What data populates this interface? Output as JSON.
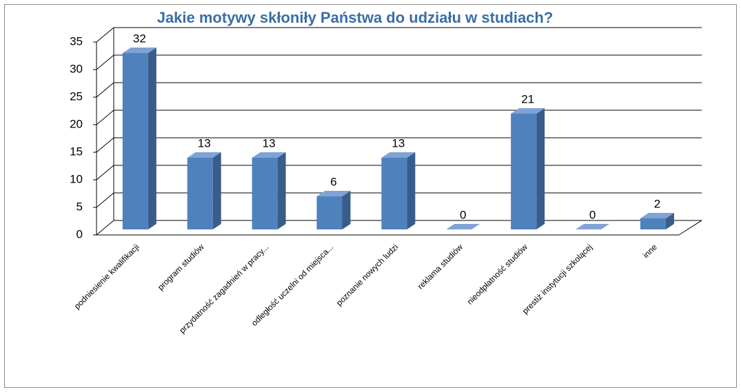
{
  "chart_data": {
    "type": "bar3d",
    "title": "Jakie motywy skłoniły Państwa do udziału w studiach?",
    "categories": [
      "podniesienie kwalifikacji",
      "program studiów",
      "przydatność zagadnień w pracy...",
      "odległość uczelni od miejsca...",
      "poznanie nowych ludzi",
      "reklama studiów",
      "nieodpłatność studiów",
      "prestiż instytucji szkolącej",
      "inne"
    ],
    "values": [
      32,
      13,
      13,
      6,
      13,
      0,
      21,
      0,
      2
    ],
    "color": "#4f81bd",
    "ylim": [
      0,
      35
    ],
    "yticks": [
      0,
      5,
      10,
      15,
      20,
      25,
      30,
      35
    ],
    "grid": true
  }
}
